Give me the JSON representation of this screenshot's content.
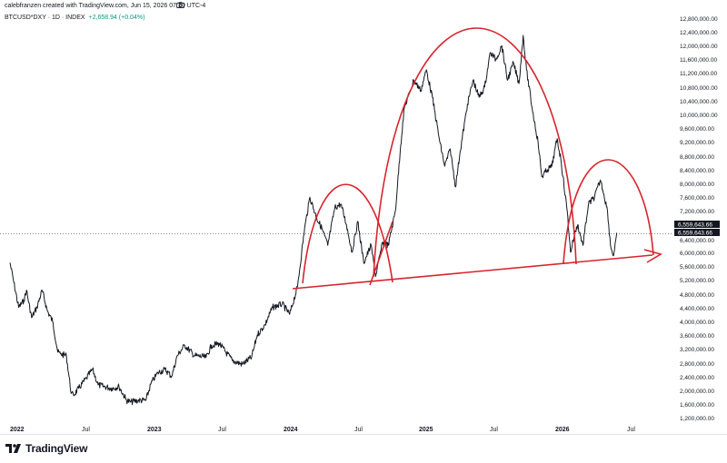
{
  "header": {
    "credit": "calebfranzen created with TradingView.com, Jun 15, 2026 07:10 UTC-4",
    "symbol": "BTCUSD*DXY · 1D · INDEX",
    "change": "+2,658.94 (+0.04%)"
  },
  "brand": {
    "name": "TradingView",
    "icon": "tradingview-logo-icon"
  },
  "price_tags": [
    "6,559,643.66",
    "6,559,643.66",
    "6,400,000.00"
  ],
  "colors": {
    "line": "#131722",
    "annotation": "#d8242d",
    "tag_bg": "#131722",
    "tag_text": "#ffffff"
  },
  "chart_data": {
    "type": "line",
    "xlabels": [
      "2022",
      "Jul",
      "2023",
      "Jul",
      "2024",
      "Jul",
      "2025",
      "Jul",
      "2026",
      "Jul"
    ],
    "bold_xlabels": [
      "2022",
      "2023",
      "2024",
      "2025",
      "2026"
    ],
    "yticks": [
      "12,800,000.00",
      "12,400,000.00",
      "12,000,000.00",
      "11,600,000.00",
      "11,200,000.00",
      "10,800,000.00",
      "10,400,000.00",
      "10,000,000.00",
      "9,600,000.00",
      "9,200,000.00",
      "8,800,000.00",
      "8,400,000.00",
      "8,000,000.00",
      "7,600,000.00",
      "7,200,000.00",
      "6,800,000.00",
      "6,000,000.00",
      "5,600,000.00",
      "5,200,000.00",
      "4,800,000.00",
      "4,400,000.00",
      "4,000,000.00",
      "3,600,000.00",
      "3,200,000.00",
      "2,800,000.00",
      "2,400,000.00",
      "2,000,000.00",
      "1,600,000.00",
      "1,200,000.00"
    ],
    "ylim": [
      1000000,
      13000000
    ],
    "last_value": 6559643.66,
    "series": [
      {
        "values": [
          [
            "2022-01-01",
            5700000
          ],
          [
            "2022-01-10",
            5200000
          ],
          [
            "2022-01-24",
            4400000
          ],
          [
            "2022-02-07",
            4600000
          ],
          [
            "2022-02-14",
            4900000
          ],
          [
            "2022-02-28",
            4100000
          ],
          [
            "2022-03-14",
            4400000
          ],
          [
            "2022-03-28",
            4900000
          ],
          [
            "2022-04-11",
            4300000
          ],
          [
            "2022-04-25",
            4000000
          ],
          [
            "2022-05-09",
            3100000
          ],
          [
            "2022-05-16",
            3050000
          ],
          [
            "2022-06-01",
            3000000
          ],
          [
            "2022-06-14",
            1900000
          ],
          [
            "2022-06-20",
            1850000
          ],
          [
            "2022-07-04",
            2050000
          ],
          [
            "2022-07-25",
            2350000
          ],
          [
            "2022-08-10",
            2600000
          ],
          [
            "2022-08-25",
            2150000
          ],
          [
            "2022-09-10",
            2100000
          ],
          [
            "2022-10-01",
            2050000
          ],
          [
            "2022-10-20",
            2100000
          ],
          [
            "2022-11-09",
            1700000
          ],
          [
            "2022-11-20",
            1650000
          ],
          [
            "2022-12-10",
            1700000
          ],
          [
            "2022-12-31",
            1700000
          ],
          [
            "2023-01-14",
            2200000
          ],
          [
            "2023-02-01",
            2500000
          ],
          [
            "2023-02-20",
            2600000
          ],
          [
            "2023-03-10",
            2400000
          ],
          [
            "2023-03-25",
            3000000
          ],
          [
            "2023-04-14",
            3300000
          ],
          [
            "2023-05-10",
            3000000
          ],
          [
            "2023-06-10",
            2950000
          ],
          [
            "2023-06-25",
            3300000
          ],
          [
            "2023-07-15",
            3350000
          ],
          [
            "2023-08-20",
            2850000
          ],
          [
            "2023-09-15",
            2750000
          ],
          [
            "2023-10-10",
            2950000
          ],
          [
            "2023-10-25",
            3600000
          ],
          [
            "2023-11-15",
            3900000
          ],
          [
            "2023-12-05",
            4400000
          ],
          [
            "2023-12-31",
            4500000
          ],
          [
            "2024-01-20",
            4200000
          ],
          [
            "2024-02-10",
            5000000
          ],
          [
            "2024-02-29",
            6700000
          ],
          [
            "2024-03-14",
            7600000
          ],
          [
            "2024-04-01",
            7000000
          ],
          [
            "2024-04-15",
            6700000
          ],
          [
            "2024-05-01",
            6200000
          ],
          [
            "2024-05-20",
            7300000
          ],
          [
            "2024-06-05",
            7400000
          ],
          [
            "2024-06-20",
            6800000
          ],
          [
            "2024-07-05",
            6000000
          ],
          [
            "2024-07-20",
            6900000
          ],
          [
            "2024-08-05",
            5700000
          ],
          [
            "2024-08-25",
            6200000
          ],
          [
            "2024-09-06",
            5300000
          ],
          [
            "2024-09-25",
            6300000
          ],
          [
            "2024-10-10",
            6200000
          ],
          [
            "2024-10-29",
            7200000
          ],
          [
            "2024-11-12",
            9100000
          ],
          [
            "2024-11-22",
            10200000
          ],
          [
            "2024-12-05",
            10600000
          ],
          [
            "2024-12-17",
            11000000
          ],
          [
            "2025-01-05",
            10700000
          ],
          [
            "2025-01-20",
            11300000
          ],
          [
            "2025-02-05",
            10500000
          ],
          [
            "2025-02-25",
            9200000
          ],
          [
            "2025-03-10",
            8500000
          ],
          [
            "2025-03-25",
            9000000
          ],
          [
            "2025-04-08",
            7900000
          ],
          [
            "2025-04-20",
            8900000
          ],
          [
            "2025-05-10",
            10300000
          ],
          [
            "2025-05-25",
            11000000
          ],
          [
            "2025-06-10",
            10500000
          ],
          [
            "2025-06-25",
            10800000
          ],
          [
            "2025-07-10",
            11800000
          ],
          [
            "2025-07-25",
            11600000
          ],
          [
            "2025-08-10",
            12000000
          ],
          [
            "2025-08-25",
            11000000
          ],
          [
            "2025-09-10",
            11500000
          ],
          [
            "2025-09-25",
            10900000
          ],
          [
            "2025-10-06",
            12300000
          ],
          [
            "2025-10-15",
            11300000
          ],
          [
            "2025-10-30",
            10200000
          ],
          [
            "2025-11-15",
            9200000
          ],
          [
            "2025-11-25",
            8200000
          ],
          [
            "2025-12-10",
            8400000
          ],
          [
            "2025-12-22",
            8500000
          ],
          [
            "2026-01-05",
            9300000
          ],
          [
            "2026-01-15",
            8700000
          ],
          [
            "2026-02-01",
            7200000
          ],
          [
            "2026-02-10",
            6000000
          ],
          [
            "2026-02-20",
            6500000
          ],
          [
            "2026-03-01",
            6800000
          ],
          [
            "2026-03-15",
            6200000
          ],
          [
            "2026-03-30",
            7400000
          ],
          [
            "2026-04-15",
            7600000
          ],
          [
            "2026-05-01",
            8100000
          ],
          [
            "2026-05-10",
            7700000
          ],
          [
            "2026-05-20",
            7200000
          ],
          [
            "2026-05-28",
            6200000
          ],
          [
            "2026-06-05",
            5900000
          ],
          [
            "2026-06-15",
            6559643.66
          ]
        ]
      }
    ]
  }
}
